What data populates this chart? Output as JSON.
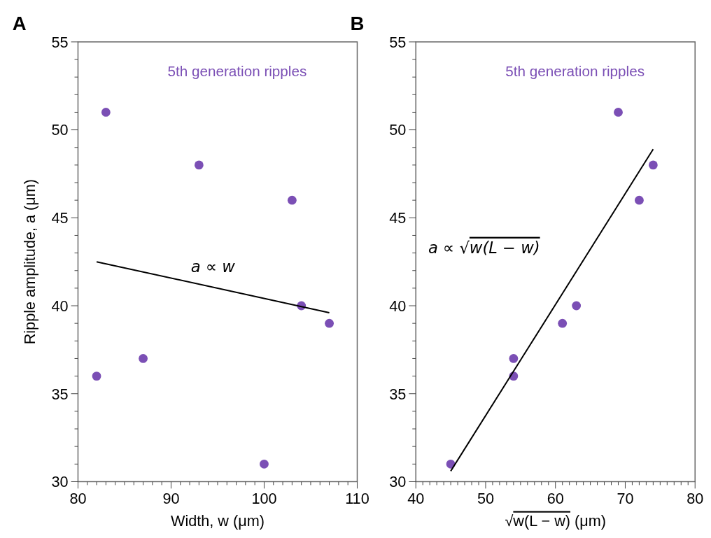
{
  "chart_data": [
    {
      "type": "scatter",
      "title": "A",
      "xlabel": "Width, w (μm)",
      "ylabel": "Ripple amplitude, a (μm)",
      "grid": false,
      "xlim": [
        80,
        110
      ],
      "ylim": [
        30,
        55
      ],
      "xticks": [
        80,
        {
          "value": 81,
          "label": null
        },
        {
          "value": 82,
          "label": null
        },
        {
          "value": 83,
          "label": null
        },
        {
          "value": 84,
          "label": null
        },
        {
          "value": 85,
          "label": null
        },
        {
          "value": 86,
          "label": null
        },
        {
          "value": 87,
          "label": null
        },
        {
          "value": 88,
          "label": null
        },
        {
          "value": 89,
          "label": null
        },
        90,
        {
          "value": 91,
          "label": null
        },
        {
          "value": 92,
          "label": null
        },
        {
          "value": 93,
          "label": null
        },
        {
          "value": 94,
          "label": null
        },
        {
          "value": 95,
          "label": null
        },
        {
          "value": 96,
          "label": null
        },
        {
          "value": 97,
          "label": null
        },
        {
          "value": 98,
          "label": null
        },
        {
          "value": 99,
          "label": null
        },
        100,
        {
          "value": 101,
          "label": null
        },
        {
          "value": 102,
          "label": null
        },
        {
          "value": 103,
          "label": null
        },
        {
          "value": 104,
          "label": null
        },
        {
          "value": 105,
          "label": null
        },
        {
          "value": 106,
          "label": null
        },
        {
          "value": 107,
          "label": null
        },
        {
          "value": 108,
          "label": null
        },
        {
          "value": 109,
          "label": null
        },
        110
      ],
      "yticks": [
        30,
        {
          "value": 31,
          "label": null
        },
        {
          "value": 32,
          "label": null
        },
        {
          "value": 33,
          "label": null
        },
        {
          "value": 34,
          "label": null
        },
        35,
        {
          "value": 36,
          "label": null
        },
        {
          "value": 37,
          "label": null
        },
        {
          "value": 38,
          "label": null
        },
        {
          "value": 39,
          "label": null
        },
        40,
        {
          "value": 41,
          "label": null
        },
        {
          "value": 42,
          "label": null
        },
        {
          "value": 43,
          "label": null
        },
        {
          "value": 44,
          "label": null
        },
        45,
        {
          "value": 46,
          "label": null
        },
        {
          "value": 47,
          "label": null
        },
        {
          "value": 48,
          "label": null
        },
        {
          "value": 49,
          "label": null
        },
        50,
        {
          "value": 51,
          "label": null
        },
        {
          "value": 52,
          "label": null
        },
        {
          "value": 53,
          "label": null
        },
        {
          "value": 54,
          "label": null
        },
        55
      ],
      "series": [
        {
          "name": "5th generation ripples",
          "marker": "circle",
          "color": "#7b4fb5",
          "x": [
            82,
            83,
            87,
            93,
            100,
            103,
            104,
            107
          ],
          "values": [
            36,
            51,
            37,
            48,
            31,
            46,
            40,
            39
          ]
        },
        {
          "name": "a ∝ w",
          "type": "line",
          "marker": "none",
          "color": "#000000",
          "x": [
            82,
            107
          ],
          "values": [
            42.5,
            39.6
          ]
        }
      ]
    },
    {
      "type": "scatter",
      "title": "B",
      "xlabel": "√w(L − w) (μm)",
      "grid": false,
      "xlim": [
        40,
        80
      ],
      "ylim": [
        30,
        55
      ],
      "xticks": [
        40,
        {
          "value": 41,
          "label": null
        },
        {
          "value": 42,
          "label": null
        },
        {
          "value": 43,
          "label": null
        },
        {
          "value": 44,
          "label": null
        },
        {
          "value": 45,
          "label": null
        },
        {
          "value": 46,
          "label": null
        },
        {
          "value": 47,
          "label": null
        },
        {
          "value": 48,
          "label": null
        },
        {
          "value": 49,
          "label": null
        },
        50,
        {
          "value": 51,
          "label": null
        },
        {
          "value": 52,
          "label": null
        },
        {
          "value": 53,
          "label": null
        },
        {
          "value": 54,
          "label": null
        },
        {
          "value": 55,
          "label": null
        },
        {
          "value": 56,
          "label": null
        },
        {
          "value": 57,
          "label": null
        },
        {
          "value": 58,
          "label": null
        },
        {
          "value": 59,
          "label": null
        },
        60,
        {
          "value": 61,
          "label": null
        },
        {
          "value": 62,
          "label": null
        },
        {
          "value": 63,
          "label": null
        },
        {
          "value": 64,
          "label": null
        },
        {
          "value": 65,
          "label": null
        },
        {
          "value": 66,
          "label": null
        },
        {
          "value": 67,
          "label": null
        },
        {
          "value": 68,
          "label": null
        },
        {
          "value": 69,
          "label": null
        },
        70,
        {
          "value": 71,
          "label": null
        },
        {
          "value": 72,
          "label": null
        },
        {
          "value": 73,
          "label": null
        },
        {
          "value": 74,
          "label": null
        },
        {
          "value": 75,
          "label": null
        },
        {
          "value": 76,
          "label": null
        },
        {
          "value": 77,
          "label": null
        },
        {
          "value": 78,
          "label": null
        },
        {
          "value": 79,
          "label": null
        },
        80
      ],
      "yticks": [
        30,
        {
          "value": 31,
          "label": null
        },
        {
          "value": 32,
          "label": null
        },
        {
          "value": 33,
          "label": null
        },
        {
          "value": 34,
          "label": null
        },
        35,
        {
          "value": 36,
          "label": null
        },
        {
          "value": 37,
          "label": null
        },
        {
          "value": 38,
          "label": null
        },
        {
          "value": 39,
          "label": null
        },
        40,
        {
          "value": 41,
          "label": null
        },
        {
          "value": 42,
          "label": null
        },
        {
          "value": 43,
          "label": null
        },
        {
          "value": 44,
          "label": null
        },
        45,
        {
          "value": 46,
          "label": null
        },
        {
          "value": 47,
          "label": null
        },
        {
          "value": 48,
          "label": null
        },
        {
          "value": 49,
          "label": null
        },
        50,
        {
          "value": 51,
          "label": null
        },
        {
          "value": 52,
          "label": null
        },
        {
          "value": 53,
          "label": null
        },
        {
          "value": 54,
          "label": null
        },
        55
      ],
      "series": [
        {
          "name": "5th generation ripples",
          "marker": "circle",
          "color": "#7b4fb5",
          "x": [
            45,
            54,
            54,
            61,
            63,
            69,
            72,
            74
          ],
          "values": [
            31,
            37,
            36,
            39,
            40,
            51,
            46,
            48
          ]
        },
        {
          "name": "a ∝ √w(L − w)",
          "type": "line",
          "marker": "none",
          "color": "#000000",
          "x": [
            45,
            74
          ],
          "values": [
            30.6,
            48.9
          ]
        }
      ]
    }
  ]
}
